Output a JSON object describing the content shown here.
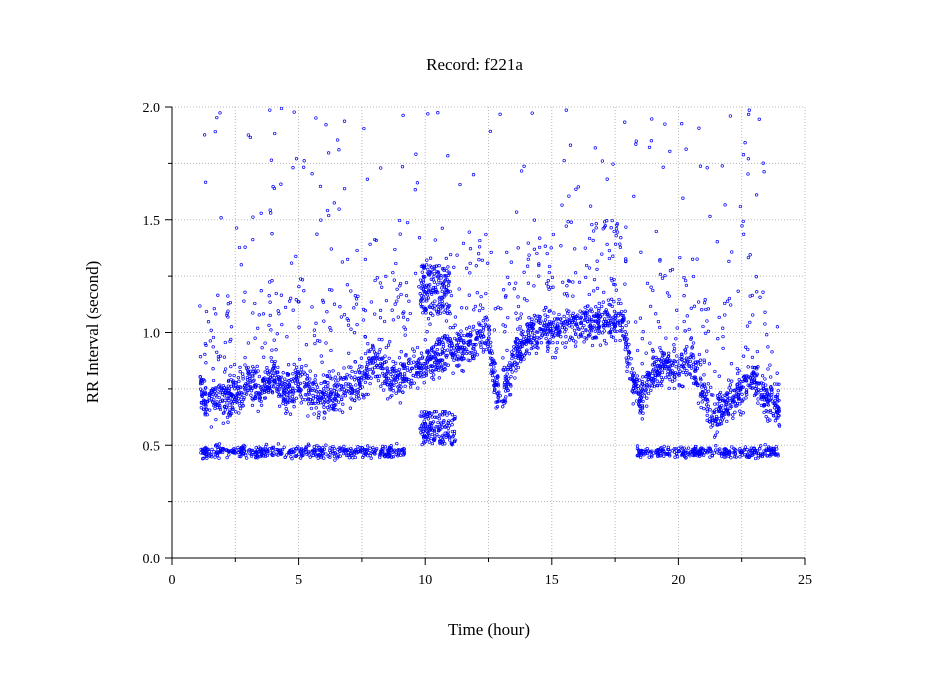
{
  "chart_data": {
    "type": "scatter",
    "title": "Record:  f221a",
    "xlabel": "Time (hour)",
    "ylabel": "RR Interval (second)",
    "xlim": [
      0,
      25
    ],
    "ylim": [
      0.0,
      2.0
    ],
    "x_ticks": [
      "0",
      "5",
      "10",
      "15",
      "20",
      "25"
    ],
    "y_ticks": [
      "0.0",
      "0.5",
      "1.0",
      "1.5",
      "2.0"
    ],
    "grid": true,
    "legend": "none",
    "marker_color": "#0000ff",
    "series": [
      {
        "x_start": 1.1,
        "x_end": 24.0,
        "trend": [
          [
            1.1,
            0.75
          ],
          [
            1.5,
            0.7
          ],
          [
            2.5,
            0.72
          ],
          [
            3.0,
            0.78
          ],
          [
            3.5,
            0.75
          ],
          [
            4.0,
            0.8
          ],
          [
            4.5,
            0.72
          ],
          [
            5.0,
            0.8
          ],
          [
            5.5,
            0.73
          ],
          [
            6.0,
            0.72
          ],
          [
            7.0,
            0.76
          ],
          [
            7.5,
            0.78
          ],
          [
            8.0,
            0.88
          ],
          [
            8.5,
            0.8
          ],
          [
            9.0,
            0.8
          ],
          [
            9.5,
            0.84
          ],
          [
            10.0,
            0.87
          ],
          [
            11.0,
            0.92
          ],
          [
            12.0,
            0.96
          ],
          [
            12.5,
            1.0
          ],
          [
            12.8,
            0.72
          ],
          [
            13.0,
            0.7
          ],
          [
            13.5,
            0.88
          ],
          [
            14.0,
            0.98
          ],
          [
            15.0,
            1.02
          ],
          [
            16.0,
            1.04
          ],
          [
            17.0,
            1.05
          ],
          [
            17.8,
            1.05
          ],
          [
            18.2,
            0.78
          ],
          [
            18.5,
            0.7
          ],
          [
            19.0,
            0.85
          ],
          [
            20.0,
            0.85
          ],
          [
            20.5,
            0.9
          ],
          [
            21.0,
            0.72
          ],
          [
            21.5,
            0.62
          ],
          [
            22.0,
            0.7
          ],
          [
            22.5,
            0.75
          ],
          [
            23.0,
            0.8
          ],
          [
            23.5,
            0.7
          ],
          [
            24.0,
            0.65
          ]
        ],
        "low_band": {
          "value": 0.47,
          "ranges": [
            [
              1.1,
              9.2
            ],
            [
              18.3,
              24.0
            ]
          ]
        },
        "secondary_clusters": [
          {
            "x_range": [
              9.8,
              11.2
            ],
            "y_range": [
              0.5,
              0.65
            ]
          },
          {
            "x_range": [
              9.8,
              11.0
            ],
            "y_range": [
              1.08,
              1.3
            ]
          }
        ]
      }
    ]
  }
}
